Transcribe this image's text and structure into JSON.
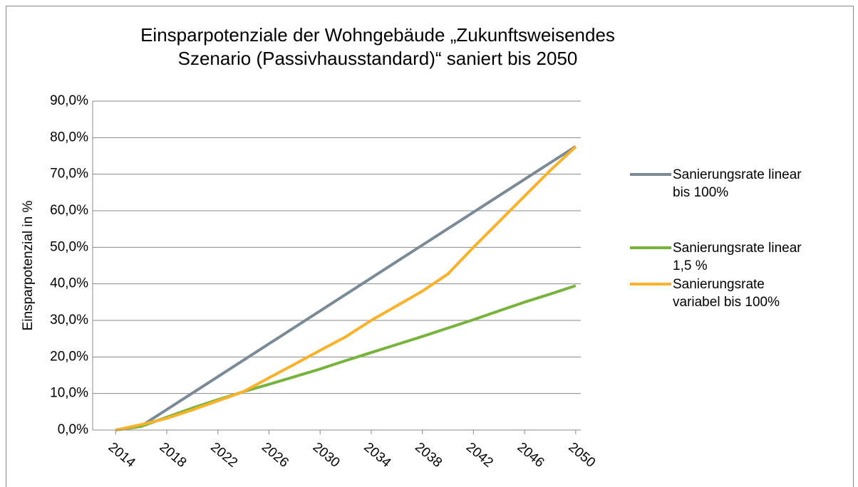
{
  "chart_data": {
    "type": "line",
    "title": "Einsparpotenziale der Wohngebäude „Zukunftsweisendes Szenario (Passivhausstandard)“ saniert bis 2050",
    "ylabel": "Einsparpotenzial in %",
    "x": [
      2014,
      2016,
      2018,
      2020,
      2022,
      2024,
      2026,
      2028,
      2030,
      2032,
      2034,
      2036,
      2038,
      2040,
      2042,
      2044,
      2046,
      2048,
      2050
    ],
    "series": [
      {
        "name": "Sanierungsrate linear bis 100%",
        "color": "#7a8b97",
        "values": [
          null,
          1.1,
          5.6,
          10.1,
          14.6,
          19.1,
          23.6,
          28.1,
          32.6,
          37.1,
          41.6,
          46.1,
          50.6,
          55.1,
          59.6,
          64.1,
          68.6,
          73.1,
          77.6
        ]
      },
      {
        "name": "Sanierungsrate linear 1,5 %",
        "color": "#78b43c",
        "values": [
          0,
          1,
          3.5,
          6,
          8.3,
          10.5,
          12.5,
          14.6,
          16.7,
          19,
          21.2,
          23.4,
          25.6,
          27.9,
          30.2,
          32.6,
          35,
          37.2,
          39.5
        ]
      },
      {
        "name": "Sanierungsrate variabel bis 100%",
        "color": "#f9b22a",
        "values": [
          0,
          1.5,
          3.2,
          5.5,
          8,
          10.5,
          14.3,
          18,
          21.8,
          25.5,
          30,
          34,
          38,
          42.7,
          50,
          57,
          64,
          71,
          77.5
        ]
      }
    ],
    "xlim": [
      2012.2,
      2050.4
    ],
    "xticks": [
      2014,
      2018,
      2022,
      2026,
      2030,
      2034,
      2038,
      2042,
      2046,
      2050
    ],
    "ylim": [
      0,
      90
    ],
    "yticks": [
      {
        "value": 0,
        "label": "0,0%"
      },
      {
        "value": 10,
        "label": "10,0%"
      },
      {
        "value": 20,
        "label": "20,0%"
      },
      {
        "value": 30,
        "label": "30,0%"
      },
      {
        "value": 40,
        "label": "40,0%"
      },
      {
        "value": 50,
        "label": "50,0%"
      },
      {
        "value": 60,
        "label": "60,0%"
      },
      {
        "value": 70,
        "label": "70,0%"
      },
      {
        "value": 80,
        "label": "80,0%"
      },
      {
        "value": 90,
        "label": "90,0%"
      }
    ],
    "grid": true,
    "legend": "right"
  }
}
